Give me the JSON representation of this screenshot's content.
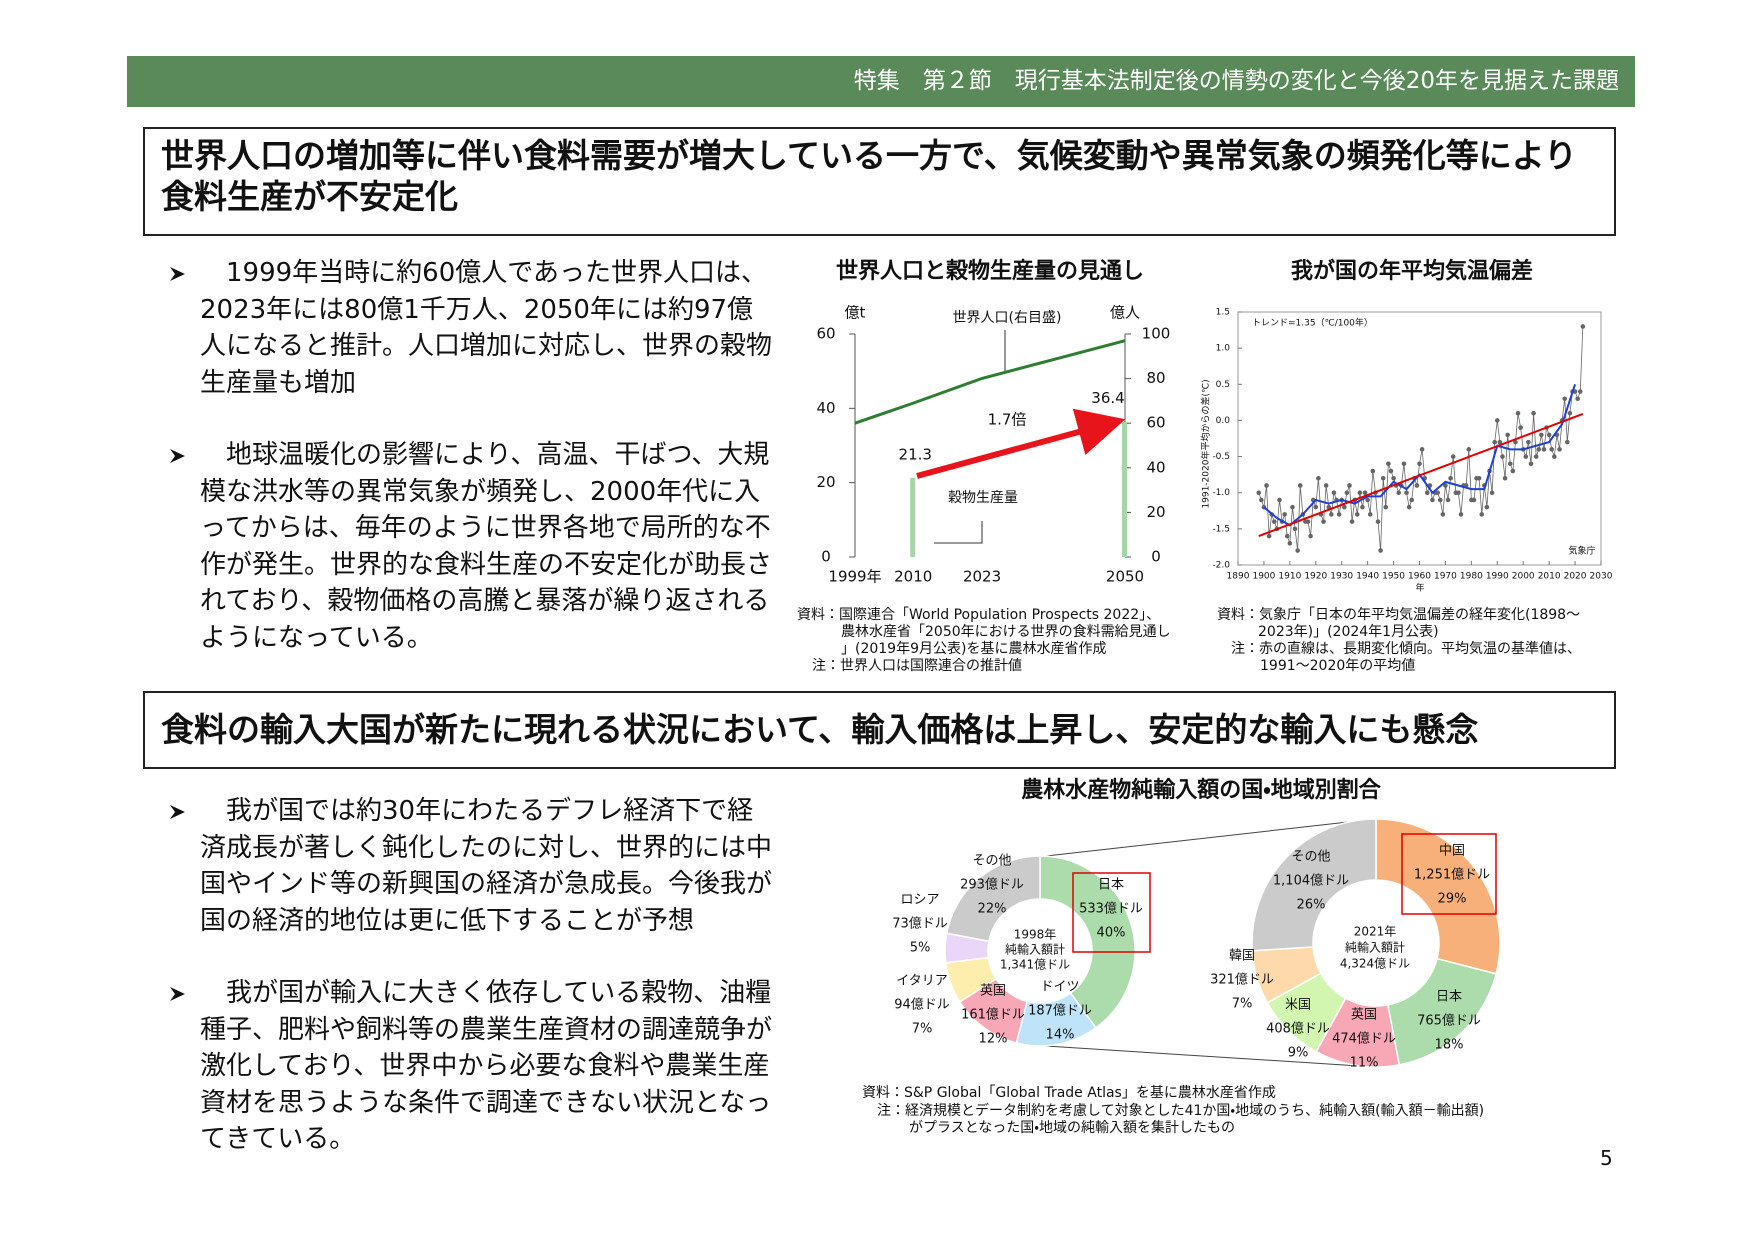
{
  "header": "特集　第２節　現行基本法制定後の情勢の変化と今後20年を見据えた課題",
  "page_number": "5",
  "sections": [
    {
      "title": "世界人口の増加等に伴い食料需要が増大している一方で、気候変動や異常気象の頻発化等により食料生産が不安定化",
      "bullets": [
        "1999年当時に約60億人であった世界人口は、2023年には80億1千万人、2050年には約97億人になると推計。人口増加に対応し、世界の穀物生産量も増加",
        "地球温暖化の影響により、高温、干ばつ、大規模な洪水等の異常気象が頻発し、2000年代に入ってからは、毎年のように世界各地で局所的な不作が発生。世界的な食料生産の不安定化が助長されており、穀物価格の高騰と暴落が繰り返されるようになっている。"
      ]
    },
    {
      "title": "食料の輸入大国が新たに現れる状況において、輸入価格は上昇し、安定的な輸入にも懸念",
      "bullets": [
        "我が国では約30年にわたるデフレ経済下で経済成長が著しく鈍化したのに対し、世界的には中国やインド等の新興国の経済が急成長。今後我が国の経済的地位は更に低下することが予想",
        "我が国が輸入に大きく依存している穀物、油糧種子、肥料や飼料等の農業生産資材の調達競争が激化しており、世界中から必要な食料や農業生産資材を思うような条件で調達できない状況となってきている。"
      ]
    }
  ],
  "chart_data": [
    {
      "type": "combo",
      "title": "世界人口と穀物生産量の見通し",
      "xlim": [
        1999,
        2050
      ],
      "xticks": [
        {
          "value": 1999,
          "label": "1999年"
        },
        2010,
        2023,
        2050
      ],
      "y_label": "億t",
      "ylim": [
        0,
        60
      ],
      "yticks": [
        0,
        20,
        40,
        60
      ],
      "y2_label": "億人",
      "y2lim": [
        0,
        100
      ],
      "y2ticks": [
        0,
        20,
        40,
        60,
        80,
        100
      ],
      "series": [
        {
          "name": "世界人口(右目盛)",
          "type": "line",
          "axis": "y2",
          "color": "#2e7d32",
          "x": [
            1999,
            2010,
            2023,
            2050
          ],
          "values": [
            60,
            69,
            80.1,
            97
          ]
        },
        {
          "name": "穀物生産量",
          "type": "bar",
          "color": "#a5d6a7",
          "x": [
            2010,
            2050
          ],
          "values": [
            21.3,
            36.4
          ]
        }
      ],
      "annotations": [
        "1.7倍"
      ],
      "source": [
        "資料：国際連合「World Population Prospects 2022」、",
        "農林水産省「2050年における世界の食料需給見通し",
        "」(2019年9月公表)を基に農林水産省作成"
      ],
      "note": [
        "注：世界人口は国際連合の推計値"
      ]
    },
    {
      "type": "scatter-line",
      "title": "我が国の年平均気温偏差",
      "y_label": "1991-2020年平均からの差(℃)",
      "x_label": "年",
      "xlim": [
        1890,
        2030
      ],
      "xticks": [
        1890,
        1900,
        1910,
        1920,
        1930,
        1940,
        1950,
        1960,
        1970,
        1980,
        1990,
        2000,
        2010,
        2020,
        2030
      ],
      "ylim": [
        -2,
        1.5
      ],
      "yticks": [
        {
          "value": -2,
          "label": "-2.0"
        },
        -1.5,
        {
          "value": -1,
          "label": "-1.0"
        },
        -0.5,
        {
          "value": 0,
          "label": "0.0"
        },
        0.5,
        {
          "value": 1,
          "label": "1.0"
        },
        1.5
      ],
      "series": [
        {
          "type": "scatter",
          "color": "#666666",
          "x": [
            1898,
            1899,
            1900,
            1901,
            1902,
            1903,
            1904,
            1905,
            1906,
            1907,
            1908,
            1909,
            1910,
            1911,
            1912,
            1913,
            1914,
            1915,
            1916,
            1917,
            1918,
            1919,
            1920,
            1921,
            1922,
            1923,
            1924,
            1925,
            1926,
            1927,
            1928,
            1929,
            1930,
            1931,
            1932,
            1933,
            1934,
            1935,
            1936,
            1937,
            1938,
            1939,
            1940,
            1941,
            1942,
            1943,
            1944,
            1945,
            1946,
            1947,
            1948,
            1949,
            1950,
            1951,
            1952,
            1953,
            1954,
            1955,
            1956,
            1957,
            1958,
            1959,
            1960,
            1961,
            1962,
            1963,
            1964,
            1965,
            1966,
            1967,
            1968,
            1969,
            1970,
            1971,
            1972,
            1973,
            1974,
            1975,
            1976,
            1977,
            1978,
            1979,
            1980,
            1981,
            1982,
            1983,
            1984,
            1985,
            1986,
            1987,
            1988,
            1989,
            1990,
            1991,
            1992,
            1993,
            1994,
            1995,
            1996,
            1997,
            1998,
            1999,
            2000,
            2001,
            2002,
            2003,
            2004,
            2005,
            2006,
            2007,
            2008,
            2009,
            2010,
            2011,
            2012,
            2013,
            2014,
            2015,
            2016,
            2017,
            2018,
            2019,
            2020,
            2021,
            2022,
            2023
          ],
          "values": [
            -1.0,
            -1.1,
            -1.2,
            -0.9,
            -1.6,
            -1.3,
            -1.4,
            -1.5,
            -1.1,
            -1.4,
            -1.3,
            -1.6,
            -1.7,
            -1.2,
            -1.5,
            -1.8,
            -0.9,
            -1.3,
            -1.4,
            -1.4,
            -1.6,
            -1.1,
            -1.2,
            -0.8,
            -1.3,
            -1.4,
            -0.9,
            -1.2,
            -1.3,
            -1.0,
            -1.1,
            -1.3,
            -1.1,
            -1.2,
            -1.0,
            -0.9,
            -1.4,
            -1.1,
            -1.3,
            -1.0,
            -1.2,
            -1.0,
            -1.1,
            -1.3,
            -0.7,
            -1.0,
            -1.4,
            -1.8,
            -0.8,
            -1.2,
            -0.6,
            -0.7,
            -0.8,
            -0.9,
            -1.0,
            -0.9,
            -0.6,
            -1.0,
            -1.2,
            -1.1,
            -0.8,
            -0.9,
            -0.6,
            -0.4,
            -0.8,
            -1.0,
            -0.9,
            -1.1,
            -1.0,
            -1.0,
            -1.1,
            -1.3,
            -0.9,
            -1.1,
            -0.8,
            -0.5,
            -1.0,
            -1.0,
            -1.3,
            -0.9,
            -0.9,
            -0.4,
            -1.1,
            -1.1,
            -0.8,
            -0.8,
            -1.3,
            -0.9,
            -1.2,
            -0.7,
            -1.0,
            -0.3,
            0.0,
            -0.3,
            -0.5,
            -0.8,
            -0.2,
            -0.6,
            -0.7,
            -0.3,
            0.1,
            -0.1,
            -0.4,
            -0.5,
            -0.3,
            -0.6,
            0.1,
            -0.5,
            -0.4,
            -0.2,
            -0.4,
            -0.1,
            -0.2,
            -0.4,
            -0.5,
            -0.2,
            -0.4,
            0.0,
            0.3,
            -0.3,
            0.1,
            0.4,
            0.4,
            0.3,
            0.4,
            1.3
          ]
        },
        {
          "type": "line",
          "color": "#1f3fd6",
          "x": [
            1900,
            1905,
            1910,
            1915,
            1920,
            1925,
            1930,
            1935,
            1940,
            1945,
            1950,
            1955,
            1960,
            1965,
            1970,
            1975,
            1980,
            1985,
            1990,
            1995,
            2000,
            2005,
            2010,
            2015,
            2020
          ],
          "values": [
            -1.2,
            -1.35,
            -1.45,
            -1.3,
            -1.1,
            -1.15,
            -1.1,
            -1.15,
            -1.05,
            -1.05,
            -0.85,
            -0.95,
            -0.75,
            -1.0,
            -0.85,
            -0.9,
            -0.95,
            -0.95,
            -0.35,
            -0.4,
            -0.4,
            -0.35,
            -0.3,
            -0.05,
            0.5
          ]
        },
        {
          "type": "line",
          "color": "#e00000",
          "x": [
            1898,
            2023
          ],
          "values": [
            -1.6,
            0.09
          ]
        }
      ],
      "annotations": [
        "トレンド=1.35（℃/100年）",
        "気象庁"
      ],
      "source": [
        "資料：気象庁「日本の年平均気温偏差の経年変化(1898～",
        "2023年)」(2024年1月公表)"
      ],
      "note": [
        "注：赤の直線は、長期変化傾向。平均気温の基準値は、",
        "1991～2020年の平均値"
      ]
    },
    {
      "type": "donut",
      "title": "農林水産物純輸入額の国・地域別割合",
      "pies": [
        {
          "center": [
            "1998年",
            "純輸入額計",
            "1,341億ドル"
          ],
          "categories": [
            "日本",
            "ドイツ",
            "英国",
            "イタリア",
            "ロシア",
            "その他"
          ],
          "amount_labels": [
            "533億ドル",
            "187億ドル",
            "161億ドル",
            "94億ドル",
            "73億ドル",
            "293億ドル"
          ],
          "values": [
            40,
            14,
            12,
            7,
            5,
            22
          ],
          "value_labels": [
            "40%",
            "14%",
            "12%",
            "7%",
            "5%",
            "22%"
          ],
          "colors": [
            "#acdcac",
            "#bfe3f9",
            "#f8a7b7",
            "#fdeeae",
            "#ead7f7",
            "#cbcbcb"
          ]
        },
        {
          "center": [
            "2021年",
            "純輸入額計",
            "4,324億ドル"
          ],
          "categories": [
            "中国",
            "日本",
            "英国",
            "米国",
            "韓国",
            "その他"
          ],
          "amount_labels": [
            "1,251億ドル",
            "765億ドル",
            "474億ドル",
            "408億ドル",
            "321億ドル",
            "1,104億ドル"
          ],
          "values": [
            29,
            18,
            11,
            9,
            7,
            26
          ],
          "value_labels": [
            "29%",
            "18%",
            "11%",
            "9%",
            "7%",
            "26%"
          ],
          "colors": [
            "#f7b07a",
            "#acdcac",
            "#f8a7b7",
            "#d2f5b0",
            "#fdd9ac",
            "#cbcbcb"
          ]
        }
      ],
      "source": [
        "資料：S&P Global「Global Trade Atlas」を基に農林水産省作成"
      ],
      "note": [
        "注：経済規模とデータ制約を考慮して対象とした41か国・地域のうち、純輸入額(輸入額－輸出額)",
        "がプラスとなった国・地域の純輸入額を集計したもの"
      ]
    }
  ]
}
